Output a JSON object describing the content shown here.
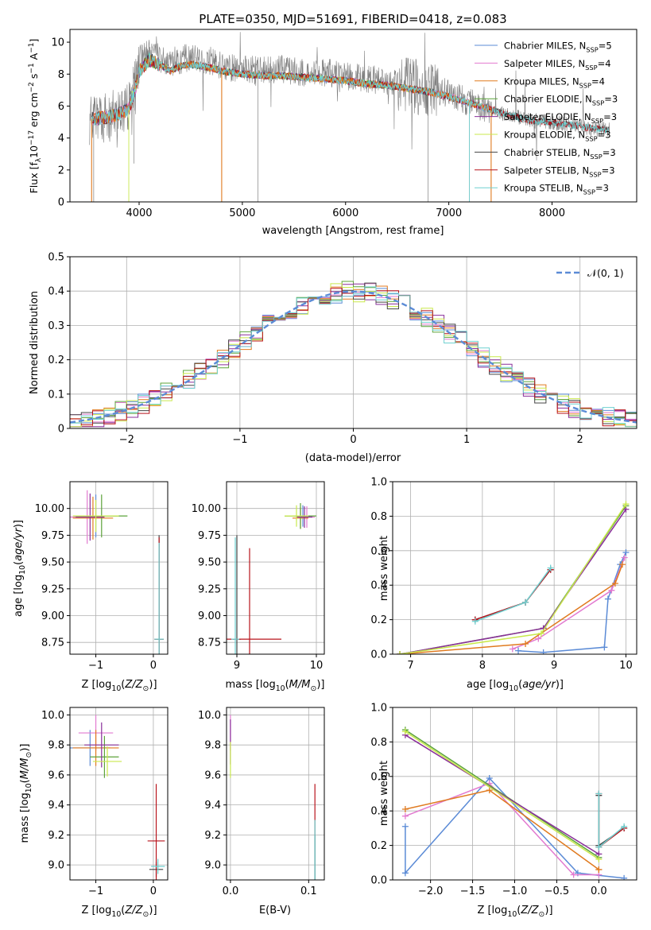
{
  "title": "PLATE=0350, MJD=51691, FIBERID=0418, z=0.083",
  "colors": {
    "Chabrier MILES": "#5b8bd6",
    "Salpeter MILES": "#e27ad0",
    "Kroupa MILES": "#e07a1f",
    "Chabrier ELODIE": "#5ca33a",
    "Salpeter ELODIE": "#8a2f9a",
    "Kroupa ELODIE": "#c9e84c",
    "Chabrier STELIB": "#444444",
    "Salpeter STELIB": "#b8141c",
    "Kroupa STELIB": "#6fd0d0",
    "observed": "#808080",
    "normal": "#5b8bd6"
  },
  "chart_data": [
    {
      "type": "line",
      "id": "spectrum",
      "xlabel": "wavelength [Angstrom, rest frame]",
      "ylabel": "Flux [f_λ 10^-17 erg cm^-2 s^-1 A^-1]",
      "xlim": [
        3330,
        8820
      ],
      "ylim": [
        0,
        10.8
      ],
      "xticks": [
        4000,
        5000,
        6000,
        7000,
        8000
      ],
      "yticks": [
        0,
        2,
        4,
        6,
        8,
        10
      ],
      "grid": false,
      "legend_position": "top-right",
      "legend": [
        {
          "name": "Chabrier MILES",
          "suffix": "=5"
        },
        {
          "name": "Salpeter MILES",
          "suffix": "=4"
        },
        {
          "name": "Kroupa MILES",
          "suffix": "=4"
        },
        {
          "name": "Chabrier ELODIE",
          "suffix": "=3"
        },
        {
          "name": "Salpeter ELODIE",
          "suffix": "=3"
        },
        {
          "name": "Kroupa ELODIE",
          "suffix": "=3"
        },
        {
          "name": "Chabrier STELIB",
          "suffix": "=3"
        },
        {
          "name": "Salpeter STELIB",
          "suffix": "=3"
        },
        {
          "name": "Kroupa STELIB",
          "suffix": "=3"
        }
      ],
      "observed_points": [
        [
          3540,
          5.1
        ],
        [
          3700,
          5.3
        ],
        [
          3800,
          5.6
        ],
        [
          3900,
          6.0
        ],
        [
          3960,
          7.4
        ],
        [
          4000,
          8.9
        ],
        [
          4100,
          9.3
        ],
        [
          4200,
          9.0
        ],
        [
          4300,
          8.6
        ],
        [
          4400,
          8.9
        ],
        [
          4500,
          9.1
        ],
        [
          4600,
          8.9
        ],
        [
          4700,
          8.8
        ],
        [
          4800,
          8.5
        ],
        [
          5000,
          8.3
        ],
        [
          5200,
          8.2
        ],
        [
          5400,
          8.3
        ],
        [
          5600,
          8.1
        ],
        [
          5800,
          8.1
        ],
        [
          6000,
          7.9
        ],
        [
          6200,
          7.7
        ],
        [
          6400,
          7.6
        ],
        [
          6600,
          7.4
        ],
        [
          6800,
          7.1
        ],
        [
          7000,
          6.8
        ],
        [
          7200,
          6.2
        ],
        [
          7400,
          5.8
        ],
        [
          7600,
          5.4
        ],
        [
          7800,
          5.1
        ],
        [
          8000,
          5.0
        ],
        [
          8200,
          4.8
        ],
        [
          8400,
          4.6
        ],
        [
          8550,
          4.5
        ]
      ],
      "model_points": [
        [
          3540,
          5.2
        ],
        [
          3700,
          5.3
        ],
        [
          3800,
          5.5
        ],
        [
          3900,
          5.8
        ],
        [
          3960,
          7.0
        ],
        [
          4000,
          8.2
        ],
        [
          4100,
          8.9
        ],
        [
          4200,
          8.6
        ],
        [
          4300,
          8.2
        ],
        [
          4400,
          8.5
        ],
        [
          4500,
          8.6
        ],
        [
          4600,
          8.5
        ],
        [
          4700,
          8.4
        ],
        [
          4800,
          8.2
        ],
        [
          5000,
          8.0
        ],
        [
          5200,
          7.9
        ],
        [
          5400,
          7.9
        ],
        [
          5600,
          7.8
        ],
        [
          5800,
          7.7
        ],
        [
          6000,
          7.6
        ],
        [
          6200,
          7.4
        ],
        [
          6400,
          7.3
        ],
        [
          6600,
          7.1
        ],
        [
          6800,
          6.9
        ],
        [
          7000,
          6.6
        ],
        [
          7200,
          6.2
        ],
        [
          7400,
          5.8
        ],
        [
          7600,
          5.4
        ],
        [
          7800,
          5.1
        ],
        [
          8000,
          5.0
        ],
        [
          8200,
          4.8
        ],
        [
          8400,
          4.6
        ],
        [
          8550,
          4.5
        ]
      ]
    },
    {
      "type": "line",
      "id": "residuals",
      "xlabel": "(data-model)/error",
      "ylabel": "Normed distribution",
      "xlim": [
        -2.5,
        2.5
      ],
      "ylim": [
        0,
        0.5
      ],
      "xticks": [
        -2,
        -1,
        0,
        1,
        2
      ],
      "yticks": [
        0.0,
        0.1,
        0.2,
        0.3,
        0.4,
        0.5
      ],
      "grid": true,
      "legend_position": "top-right",
      "legend_label": "𝒩(0, 1)",
      "bin_width": 0.1,
      "histogram_source": "normal distribution with per-model bin-to-bin noise of about ±0.03"
    },
    {
      "type": "scatter",
      "id": "age-vs-Z",
      "xlabel": "Z [log10(Z/Z☉)]",
      "ylabel": "age [log10(age/yr)]",
      "xlim": [
        -1.45,
        0.25
      ],
      "ylim": [
        8.64,
        10.25
      ],
      "xticks": [
        -1,
        0
      ],
      "yticks": [
        8.75,
        9.0,
        9.25,
        9.5,
        9.75,
        10.0
      ],
      "grid": true,
      "points": [
        {
          "series": "Chabrier MILES",
          "x": -1.0,
          "y": 9.93,
          "xerr": 0.38,
          "yerr": 0.2
        },
        {
          "series": "Salpeter MILES",
          "x": -1.15,
          "y": 9.92,
          "xerr": 0.3,
          "yerr": 0.25
        },
        {
          "series": "Kroupa MILES",
          "x": -1.05,
          "y": 9.91,
          "xerr": 0.35,
          "yerr": 0.2
        },
        {
          "series": "Chabrier ELODIE",
          "x": -0.9,
          "y": 9.93,
          "xerr": 0.45,
          "yerr": 0.2
        },
        {
          "series": "Salpeter ELODIE",
          "x": -1.1,
          "y": 9.92,
          "xerr": 0.25,
          "yerr": 0.22
        },
        {
          "series": "Kroupa ELODIE",
          "x": -1.0,
          "y": 9.93,
          "xerr": 0.4,
          "yerr": 0.15
        },
        {
          "series": "Chabrier STELIB",
          "x": 0.1,
          "y": 8.78,
          "xerr": 0.08,
          "yerr": 0.97
        },
        {
          "series": "Salpeter STELIB",
          "x": 0.1,
          "y": 8.78,
          "xerr": 0.08,
          "yerr": 0.95
        },
        {
          "series": "Kroupa STELIB",
          "x": 0.1,
          "y": 8.78,
          "xerr": 0.08,
          "yerr": 0.9
        }
      ]
    },
    {
      "type": "scatter",
      "id": "age-vs-mass",
      "xlabel": "mass [log10(M/M☉)]",
      "ylabel": "",
      "xlim": [
        8.87,
        10.1
      ],
      "ylim": [
        8.64,
        10.25
      ],
      "xticks": [
        9,
        10
      ],
      "yticks": [
        8.75,
        9.0,
        9.25,
        9.5,
        9.75,
        10.0
      ],
      "grid": true,
      "points": [
        {
          "series": "Chabrier MILES",
          "x": 9.83,
          "y": 9.93,
          "xerr": 0.12,
          "yerr": 0.1
        },
        {
          "series": "Salpeter MILES",
          "x": 9.88,
          "y": 9.92,
          "xerr": 0.1,
          "yerr": 0.1
        },
        {
          "series": "Kroupa MILES",
          "x": 9.8,
          "y": 9.91,
          "xerr": 0.1,
          "yerr": 0.1
        },
        {
          "series": "Chabrier ELODIE",
          "x": 9.8,
          "y": 9.93,
          "xerr": 0.2,
          "yerr": 0.12
        },
        {
          "series": "Salpeter ELODIE",
          "x": 9.85,
          "y": 9.92,
          "xerr": 0.1,
          "yerr": 0.1
        },
        {
          "series": "Kroupa ELODIE",
          "x": 9.75,
          "y": 9.93,
          "xerr": 0.15,
          "yerr": 0.1
        },
        {
          "series": "Chabrier STELIB",
          "x": 9.0,
          "y": 8.78,
          "xerr": 0.05,
          "yerr": 0.97
        },
        {
          "series": "Salpeter STELIB",
          "x": 9.16,
          "y": 8.78,
          "xerr": 0.4,
          "yerr": 0.85
        },
        {
          "series": "Kroupa STELIB",
          "x": 8.98,
          "y": 8.78,
          "xerr": 0.05,
          "yerr": 0.95
        }
      ]
    },
    {
      "type": "line",
      "id": "massweight-vs-age",
      "xlabel": "age [log10(age/yr)]",
      "ylabel": "mass weight",
      "xlim": [
        6.75,
        10.15
      ],
      "ylim": [
        0,
        1.0
      ],
      "xticks": [
        7,
        8,
        9,
        10
      ],
      "yticks": [
        0.0,
        0.2,
        0.4,
        0.6,
        0.8,
        1.0
      ],
      "grid": true,
      "series": [
        {
          "name": "Chabrier MILES",
          "x": [
            8.5,
            8.85,
            9.7,
            9.75,
            9.92,
            10.0
          ],
          "y": [
            0.02,
            0.01,
            0.04,
            0.32,
            0.52,
            0.59
          ]
        },
        {
          "name": "Salpeter MILES",
          "x": [
            8.42,
            8.78,
            9.8,
            9.98
          ],
          "y": [
            0.03,
            0.09,
            0.37,
            0.56
          ]
        },
        {
          "name": "Kroupa MILES",
          "x": [
            6.85,
            8.6,
            9.85,
            9.95
          ],
          "y": [
            0.0,
            0.06,
            0.41,
            0.52
          ]
        },
        {
          "name": "Chabrier ELODIE",
          "x": [
            6.85,
            8.85,
            10.0
          ],
          "y": [
            0.0,
            0.15,
            0.86
          ]
        },
        {
          "name": "Salpeter ELODIE",
          "x": [
            6.85,
            8.85,
            10.0
          ],
          "y": [
            0.0,
            0.15,
            0.84
          ]
        },
        {
          "name": "Kroupa ELODIE",
          "x": [
            6.85,
            8.82,
            10.0
          ],
          "y": [
            0.0,
            0.12,
            0.87
          ]
        },
        {
          "name": "Chabrier STELIB",
          "x": [
            7.9,
            8.6,
            8.95
          ],
          "y": [
            0.2,
            0.3,
            0.49
          ]
        },
        {
          "name": "Salpeter STELIB",
          "x": [
            7.9,
            8.6,
            8.95
          ],
          "y": [
            0.2,
            0.3,
            0.49
          ]
        },
        {
          "name": "Kroupa STELIB",
          "x": [
            7.9,
            8.6,
            8.95
          ],
          "y": [
            0.19,
            0.3,
            0.5
          ]
        }
      ]
    },
    {
      "type": "scatter",
      "id": "mass-vs-Z",
      "xlabel": "Z [log10(Z/Z☉)]",
      "ylabel": "mass [log10(M/M☉)]",
      "xlim": [
        -1.45,
        0.25
      ],
      "ylim": [
        8.9,
        10.05
      ],
      "xticks": [
        -1,
        0
      ],
      "yticks": [
        9.0,
        9.2,
        9.4,
        9.6,
        9.8,
        10.0
      ],
      "grid": true,
      "points": [
        {
          "series": "Chabrier MILES",
          "x": -1.1,
          "y": 9.78,
          "xerr": 0.35,
          "yerr": 0.12
        },
        {
          "series": "Salpeter MILES",
          "x": -1.0,
          "y": 9.88,
          "xerr": 0.3,
          "yerr": 0.12
        },
        {
          "series": "Kroupa MILES",
          "x": -1.0,
          "y": 9.78,
          "xerr": 0.4,
          "yerr": 0.12
        },
        {
          "series": "Chabrier ELODIE",
          "x": -0.85,
          "y": 9.72,
          "xerr": 0.25,
          "yerr": 0.14
        },
        {
          "series": "Salpeter ELODIE",
          "x": -0.9,
          "y": 9.8,
          "xerr": 0.3,
          "yerr": 0.15
        },
        {
          "series": "Kroupa ELODIE",
          "x": -0.8,
          "y": 9.69,
          "xerr": 0.25,
          "yerr": 0.1
        },
        {
          "series": "Chabrier STELIB",
          "x": 0.05,
          "y": 8.97,
          "xerr": 0.12,
          "yerr": 0.05
        },
        {
          "series": "Salpeter STELIB",
          "x": 0.05,
          "y": 9.16,
          "xerr": 0.15,
          "yerr": 0.38
        },
        {
          "series": "Kroupa STELIB",
          "x": 0.08,
          "y": 8.99,
          "xerr": 0.12,
          "yerr": 0.05
        }
      ]
    },
    {
      "type": "scatter",
      "id": "mass-vs-EBV",
      "xlabel": "E(B-V)",
      "ylabel": "",
      "xlim": [
        -0.005,
        0.12
      ],
      "ylim": [
        8.9,
        10.05
      ],
      "xticks": [
        0.0,
        0.1
      ],
      "yticks": [
        9.0,
        9.2,
        9.4,
        9.6,
        9.8,
        10.0
      ],
      "grid": true,
      "points": [
        {
          "series": "Salpeter MILES",
          "x": 0.0,
          "y": 9.88,
          "xerr": 0.0,
          "yerr": 0.12
        },
        {
          "series": "Salpeter ELODIE",
          "x": 0.0,
          "y": 9.82,
          "xerr": 0.0,
          "yerr": 0.15
        },
        {
          "series": "Kroupa ELODIE",
          "x": 0.0,
          "y": 9.7,
          "xerr": 0.0,
          "yerr": 0.12
        },
        {
          "series": "Salpeter STELIB",
          "x": 0.108,
          "y": 9.22,
          "xerr": 0.0,
          "yerr": 0.32
        },
        {
          "series": "Chabrier STELIB",
          "x": 0.108,
          "y": 9.05,
          "xerr": 0.0,
          "yerr": 0.15
        },
        {
          "series": "Kroupa STELIB",
          "x": 0.108,
          "y": 9.1,
          "xerr": 0.0,
          "yerr": 0.2
        }
      ]
    },
    {
      "type": "line",
      "id": "massweight-vs-Z",
      "xlabel": "Z [log10(Z/Z☉)]",
      "ylabel": "mass weight",
      "xlim": [
        -2.45,
        0.45
      ],
      "ylim": [
        0,
        1.0
      ],
      "xticks": [
        -2.0,
        -1.5,
        -1.0,
        -0.5,
        0.0
      ],
      "yticks": [
        0.0,
        0.2,
        0.4,
        0.6,
        0.8,
        1.0
      ],
      "grid": true,
      "series": [
        {
          "name": "Chabrier MILES",
          "x": [
            -2.3,
            -2.3,
            -1.3,
            -0.25,
            0.3
          ],
          "y": [
            0.31,
            0.04,
            0.59,
            0.04,
            0.01
          ]
        },
        {
          "name": "Salpeter MILES",
          "x": [
            -2.3,
            -1.3,
            -0.3,
            0.0
          ],
          "y": [
            0.37,
            0.56,
            0.03,
            0.03
          ]
        },
        {
          "name": "Kroupa MILES",
          "x": [
            -2.3,
            -1.3,
            0.0,
            0.0
          ],
          "y": [
            0.41,
            0.52,
            0.06,
            0.06
          ]
        },
        {
          "name": "Chabrier ELODIE",
          "x": [
            -2.3,
            0.0
          ],
          "y": [
            0.87,
            0.13
          ]
        },
        {
          "name": "Salpeter ELODIE",
          "x": [
            -2.3,
            0.0
          ],
          "y": [
            0.84,
            0.15
          ]
        },
        {
          "name": "Kroupa ELODIE",
          "x": [
            -2.3,
            0.0
          ],
          "y": [
            0.86,
            0.12
          ]
        },
        {
          "name": "Chabrier STELIB",
          "x": [
            0.0,
            0.0,
            0.3
          ],
          "y": [
            0.49,
            0.2,
            0.3
          ]
        },
        {
          "name": "Salpeter STELIB",
          "x": [
            0.0,
            0.0,
            0.3
          ],
          "y": [
            0.5,
            0.19,
            0.3
          ]
        },
        {
          "name": "Kroupa STELIB",
          "x": [
            0.0,
            0.0,
            0.3
          ],
          "y": [
            0.5,
            0.19,
            0.31
          ]
        }
      ]
    }
  ]
}
